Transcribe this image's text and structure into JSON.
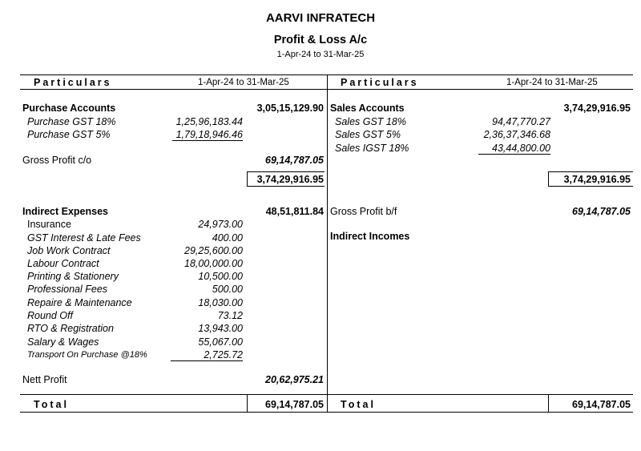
{
  "header": {
    "company": "AARVI INFRATECH",
    "title": "Profit & Loss A/c",
    "period": "1-Apr-24 to 31-Mar-25"
  },
  "table": {
    "columns": [
      "Particulars",
      "1-Apr-24 to 31-Mar-25",
      "Particulars",
      "1-Apr-24 to 31-Mar-25"
    ],
    "left": [
      {
        "label": "Purchase Accounts",
        "amount": "3,05,15,129.90"
      },
      {
        "label": "Purchase GST 18%",
        "sub_amount": "1,25,96,183.44"
      },
      {
        "label": "Purchase GST 5%",
        "sub_amount": "1,79,18,946.46"
      },
      {
        "label": "Gross Profit c/o",
        "amount": "69,14,787.05"
      },
      {
        "label": "Indirect Expenses",
        "amount": "48,51,811.84"
      },
      {
        "label": "Insurance",
        "sub_amount": "24,973.00"
      },
      {
        "label": "GST Interest & Late Fees",
        "sub_amount": "400.00"
      },
      {
        "label": "Job Work Contract",
        "sub_amount": "29,25,600.00"
      },
      {
        "label": "Labour Contract",
        "sub_amount": "18,00,000.00"
      },
      {
        "label": "Printing & Stationery",
        "sub_amount": "10,500.00"
      },
      {
        "label": "Professional Fees",
        "sub_amount": "500.00"
      },
      {
        "label": "Repaire & Maintenance",
        "sub_amount": "18,030.00"
      },
      {
        "label": "Round Off",
        "sub_amount": "73.12"
      },
      {
        "label": "RTO & Registration",
        "sub_amount": "13,943.00"
      },
      {
        "label": "Salary & Wages",
        "sub_amount": "55,067.00"
      },
      {
        "label": "Transport On Purchase @18%",
        "sub_amount": "2,725.72"
      },
      {
        "label": "Nett Profit",
        "amount": "20,62,975.21"
      }
    ],
    "right": [
      {
        "label": "Sales Accounts",
        "amount": "3,74,29,916.95"
      },
      {
        "label": "Sales GST 18%",
        "sub_amount": "94,47,770.27"
      },
      {
        "label": "Sales GST 5%",
        "sub_amount": "2,36,37,346.68"
      },
      {
        "label": "Sales IGST 18%",
        "sub_amount": "43,44,800.00"
      },
      {
        "label": "Gross Profit b/f",
        "amount": "69,14,787.05"
      },
      {
        "label": "Indirect Incomes"
      }
    ],
    "left_subtotal": "3,74,29,916.95",
    "right_subtotal": "3,74,29,916.95",
    "total": {
      "left_label": "Total",
      "left_amount": "69,14,787.05",
      "right_label": "Total",
      "right_amount": "69,14,787.05"
    }
  }
}
